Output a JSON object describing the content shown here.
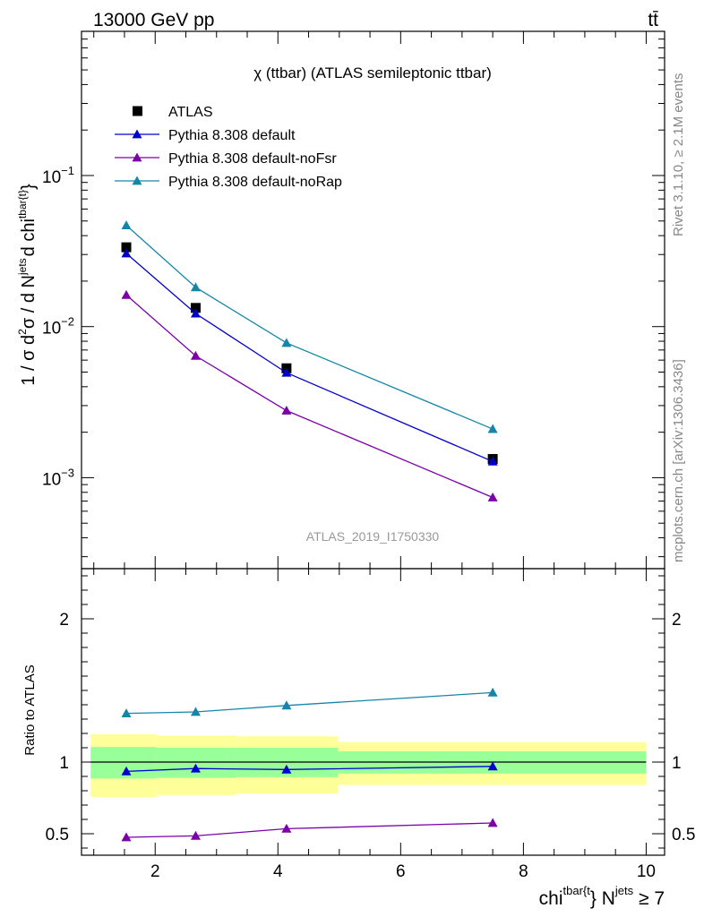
{
  "header": {
    "energy_label": "13000 GeV pp",
    "process_label": "tt̄"
  },
  "side_labels": {
    "rivet": "Rivet 3.1.10, ≥ 2.1M events",
    "source": "mcplots.cern.ch [arXiv:1306.3436]"
  },
  "chart_data": [
    {
      "type": "line",
      "panel": "main",
      "title": "χ (ttbar) (ATLAS semileptonic ttbar)",
      "watermark": "ATLAS_2019_I1750330",
      "ylabel_parts": {
        "a": "1 / σ d",
        "sup1": "2",
        "b": "σ / d N",
        "sup2": "jets",
        "c": "d chi",
        "sup3": "tbar{t}",
        "d": "}"
      },
      "yscale": "log",
      "ylim": [
        0.00025,
        0.9
      ],
      "xlim": [
        0.8,
        10.3
      ],
      "yticks": [
        {
          "value": 0.1,
          "base": "10",
          "exp": "−1"
        },
        {
          "value": 0.01,
          "base": "10",
          "exp": "−2"
        },
        {
          "value": 0.001,
          "base": "10",
          "exp": "−3"
        }
      ],
      "legend_position": "top-left",
      "x": [
        1.53,
        2.66,
        4.14,
        7.5
      ],
      "series": [
        {
          "name": "ATLAS",
          "color": "#000000",
          "marker": "square",
          "line": false,
          "values": [
            0.0335,
            0.0133,
            0.0053,
            0.00133
          ]
        },
        {
          "name": "Pythia 8.308 default",
          "color": "#0000cc",
          "marker": "triangle",
          "line": true,
          "values": [
            0.0305,
            0.0122,
            0.00495,
            0.00128
          ]
        },
        {
          "name": "Pythia 8.308 default-noFsr",
          "color": "#7b00a8",
          "marker": "triangle",
          "line": true,
          "values": [
            0.0162,
            0.0064,
            0.00278,
            0.00074
          ]
        },
        {
          "name": "Pythia 8.308 default-noRap",
          "color": "#1486a8",
          "marker": "triangle",
          "line": true,
          "values": [
            0.0468,
            0.0182,
            0.0078,
            0.0021
          ]
        }
      ]
    },
    {
      "type": "line",
      "panel": "ratio",
      "ylabel": "Ratio to ATLAS",
      "xlabel_parts": {
        "a": "chi",
        "sup1": "tbar{t",
        "b": "} N",
        "sup2": "jets",
        "c": " ≥ 7"
      },
      "ylim": [
        0.35,
        2.35
      ],
      "xlim": [
        0.8,
        10.3
      ],
      "xticks": [
        2,
        4,
        6,
        8,
        10
      ],
      "yticks": [
        {
          "value": 0.5,
          "label": "0.5"
        },
        {
          "value": 1,
          "label": "1"
        },
        {
          "value": 2,
          "label": "2"
        }
      ],
      "bands": [
        {
          "x0": 0.95,
          "x1": 2.02,
          "inner": [
            0.885,
            1.105
          ],
          "outer": [
            0.755,
            1.195
          ]
        },
        {
          "x0": 2.02,
          "x1": 3.32,
          "inner": [
            0.89,
            1.1
          ],
          "outer": [
            0.77,
            1.185
          ]
        },
        {
          "x0": 3.32,
          "x1": 4.98,
          "inner": [
            0.895,
            1.1
          ],
          "outer": [
            0.78,
            1.18
          ]
        },
        {
          "x0": 4.98,
          "x1": 10.0,
          "inner": [
            0.92,
            1.075
          ],
          "outer": [
            0.84,
            1.14
          ]
        }
      ],
      "x": [
        1.53,
        2.66,
        4.14,
        7.5
      ],
      "series": [
        {
          "name": "Pythia 8.308 default",
          "color": "#0000cc",
          "values": [
            0.935,
            0.955,
            0.948,
            0.97
          ]
        },
        {
          "name": "Pythia 8.308 default-noFsr",
          "color": "#7b00a8",
          "values": [
            0.475,
            0.485,
            0.535,
            0.575
          ]
        },
        {
          "name": "Pythia 8.308 default-noRap",
          "color": "#1486a8",
          "values": [
            1.34,
            1.35,
            1.395,
            1.485
          ]
        }
      ]
    }
  ]
}
